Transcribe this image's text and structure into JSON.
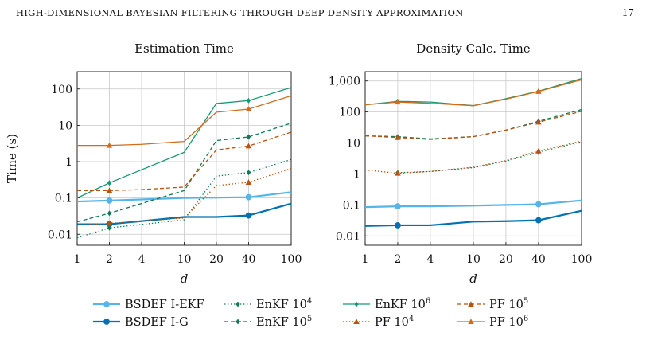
{
  "header": {
    "running_title": "HIGH-DIMENSIONAL BAYESIAN FILTERING THROUGH DEEP DENSITY APPROXIMATION",
    "page_number": "17"
  },
  "colors": {
    "bsdef_iekf": "#56b4e9",
    "bsdef_ig": "#0072b2",
    "enkf": "#0f7a55",
    "enkf_1e6": "#159a73",
    "pf": "#b8520f",
    "pf_1e6": "#d26b1a",
    "grid": "#c8c8c8"
  },
  "chart_data": [
    {
      "type": "line",
      "title": "Estimation Time",
      "xlabel": "d",
      "ylabel": "Time (s)",
      "x_scale": "log",
      "y_scale": "log",
      "xlim": [
        1,
        100
      ],
      "ylim": [
        0.005,
        300
      ],
      "x_ticks": [
        1,
        2,
        4,
        10,
        20,
        40,
        100
      ],
      "x_tick_labels": [
        "1",
        "2",
        "4",
        "10",
        "20",
        "40",
        "100"
      ],
      "y_ticks": [
        0.01,
        0.1,
        1,
        10,
        100
      ],
      "y_tick_labels": [
        "0.01",
        "0.1",
        "1",
        "10",
        "100"
      ],
      "grid": true,
      "series": [
        {
          "key": "bsdef_iekf",
          "x": [
            1,
            2,
            10,
            40,
            100
          ],
          "y": [
            0.08,
            0.085,
            0.1,
            0.105,
            0.145
          ],
          "markers": [
            2,
            40
          ]
        },
        {
          "key": "bsdef_ig",
          "x": [
            1,
            2,
            10,
            20,
            40,
            100
          ],
          "y": [
            0.019,
            0.019,
            0.03,
            0.03,
            0.033,
            0.07
          ],
          "markers": [
            2,
            40
          ]
        },
        {
          "key": "enkf_1e4",
          "x": [
            1,
            2,
            10,
            20,
            40,
            100
          ],
          "y": [
            0.008,
            0.015,
            0.025,
            0.4,
            0.5,
            1.15
          ],
          "markers": [
            2,
            40
          ]
        },
        {
          "key": "enkf_1e5",
          "x": [
            1,
            2,
            10,
            20,
            40,
            100
          ],
          "y": [
            0.022,
            0.038,
            0.16,
            3.8,
            4.8,
            11.5
          ],
          "markers": [
            2,
            40
          ]
        },
        {
          "key": "enkf_1e6",
          "x": [
            1,
            2,
            10,
            20,
            40,
            100
          ],
          "y": [
            0.1,
            0.26,
            1.8,
            40,
            48,
            110
          ],
          "markers": [
            2,
            40
          ]
        },
        {
          "key": "pf_1e4",
          "x": [
            1,
            2,
            10,
            20,
            40,
            100
          ],
          "y": [
            0.018,
            0.02,
            0.028,
            0.22,
            0.27,
            0.65
          ],
          "markers": [
            2,
            40
          ]
        },
        {
          "key": "pf_1e5",
          "x": [
            1,
            2,
            4,
            10,
            20,
            40,
            100
          ],
          "y": [
            0.16,
            0.16,
            0.17,
            0.2,
            2.1,
            2.7,
            6.5
          ],
          "markers": [
            2,
            40
          ]
        },
        {
          "key": "pf_1e6",
          "x": [
            1,
            2,
            4,
            10,
            20,
            40,
            100
          ],
          "y": [
            2.8,
            2.8,
            3.0,
            3.6,
            23,
            28,
            65
          ],
          "markers": [
            2,
            40
          ]
        }
      ]
    },
    {
      "type": "line",
      "title": "Density Calc. Time",
      "xlabel": "d",
      "ylabel": "",
      "x_scale": "log",
      "y_scale": "log",
      "xlim": [
        1,
        100
      ],
      "ylim": [
        0.005,
        2000
      ],
      "x_ticks": [
        1,
        2,
        4,
        10,
        20,
        40,
        100
      ],
      "x_tick_labels": [
        "1",
        "2",
        "4",
        "10",
        "20",
        "40",
        "100"
      ],
      "y_ticks": [
        0.01,
        0.1,
        1,
        10,
        100,
        1000
      ],
      "y_tick_labels": [
        "0.01",
        "0.1",
        "1",
        "10",
        "100",
        "1,000"
      ],
      "grid": true,
      "series": [
        {
          "key": "bsdef_iekf",
          "x": [
            1,
            2,
            4,
            10,
            20,
            40,
            100
          ],
          "y": [
            0.085,
            0.09,
            0.09,
            0.095,
            0.1,
            0.105,
            0.14
          ],
          "markers": [
            2,
            40
          ]
        },
        {
          "key": "bsdef_ig",
          "x": [
            1,
            2,
            4,
            10,
            20,
            40,
            100
          ],
          "y": [
            0.021,
            0.022,
            0.022,
            0.029,
            0.03,
            0.032,
            0.065
          ],
          "markers": [
            2,
            40
          ]
        },
        {
          "key": "enkf_1e4",
          "x": [
            2,
            4,
            10,
            20,
            40,
            100
          ],
          "y": [
            1.1,
            1.2,
            1.6,
            2.6,
            5,
            11
          ],
          "markers": [
            2,
            40
          ]
        },
        {
          "key": "enkf_1e5",
          "x": [
            1,
            2,
            4,
            10,
            20,
            40,
            100
          ],
          "y": [
            17,
            16,
            13.5,
            16,
            26,
            50,
            120
          ],
          "markers": [
            2,
            40
          ]
        },
        {
          "key": "enkf_1e6",
          "x": [
            1,
            2,
            4,
            10,
            20,
            40,
            100
          ],
          "y": [
            170,
            220,
            210,
            160,
            270,
            470,
            1200
          ],
          "markers": [
            2,
            40
          ]
        },
        {
          "key": "pf_1e4",
          "x": [
            1,
            2,
            4,
            10,
            20,
            40,
            100
          ],
          "y": [
            1.35,
            1.05,
            1.2,
            1.65,
            2.7,
            5.5,
            11.5
          ],
          "markers": [
            2,
            40
          ]
        },
        {
          "key": "pf_1e5",
          "x": [
            1,
            2,
            4,
            10,
            20,
            40,
            100
          ],
          "y": [
            17,
            15,
            13,
            16,
            26,
            47,
            105
          ],
          "markers": [
            2,
            40
          ]
        },
        {
          "key": "pf_1e6",
          "x": [
            1,
            2,
            4,
            10,
            20,
            40,
            100
          ],
          "y": [
            170,
            210,
            190,
            160,
            260,
            460,
            1100
          ],
          "markers": [
            2,
            40
          ]
        }
      ]
    }
  ],
  "legend": {
    "placement": "bottom",
    "entries": [
      {
        "key": "bsdef_iekf",
        "label": "BSDEF I-EKF",
        "dash": "solid",
        "marker": "circle",
        "color": "#56b4e9"
      },
      {
        "key": "enkf_1e4",
        "label": "EnKF 10",
        "sup": "4",
        "dash": "dotted",
        "marker": "diamond",
        "color": "#0f7a55"
      },
      {
        "key": "enkf_1e6",
        "label": "EnKF 10",
        "sup": "6",
        "dash": "solid",
        "marker": "diamond",
        "color": "#159a73"
      },
      {
        "key": "pf_1e5",
        "label": "PF 10",
        "sup": "5",
        "dash": "dashed",
        "marker": "triangle",
        "color": "#b8520f"
      },
      {
        "key": "bsdef_ig",
        "label": "BSDEF I-G",
        "dash": "solid",
        "marker": "circle",
        "color": "#0072b2"
      },
      {
        "key": "enkf_1e5",
        "label": "EnKF 10",
        "sup": "5",
        "dash": "dashed",
        "marker": "diamond",
        "color": "#0f7a55"
      },
      {
        "key": "pf_1e4",
        "label": "PF 10",
        "sup": "4",
        "dash": "dotted",
        "marker": "triangle",
        "color": "#b8520f"
      },
      {
        "key": "pf_1e6",
        "label": "PF 10",
        "sup": "6",
        "dash": "solid",
        "marker": "triangle",
        "color": "#d26b1a"
      }
    ]
  }
}
